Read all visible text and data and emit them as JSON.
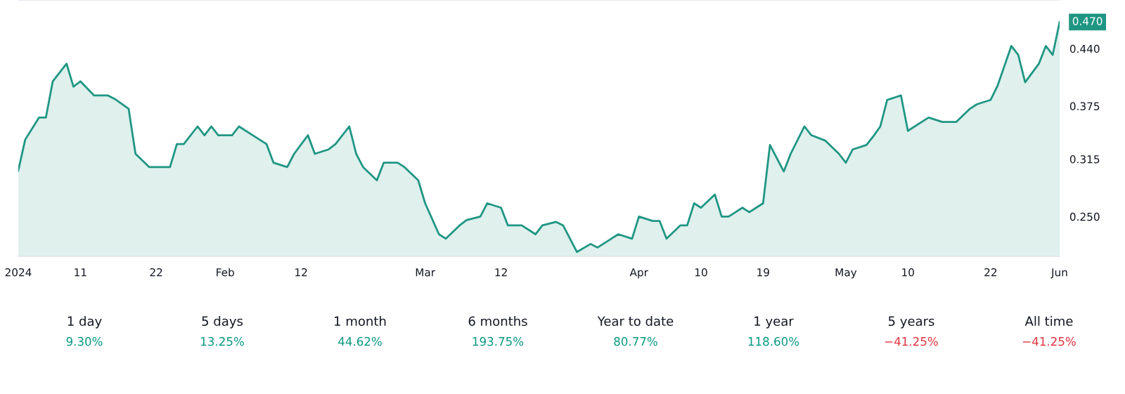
{
  "chart_data": [
    {
      "type": "area",
      "color": "#1f9683",
      "x": [
        "2024-01-02",
        "2024-01-03",
        "2024-01-05",
        "2024-01-06",
        "2024-01-07",
        "2024-01-09",
        "2024-01-10",
        "2024-01-11",
        "2024-01-13",
        "2024-01-15",
        "2024-01-16",
        "2024-01-18",
        "2024-01-19",
        "2024-01-21",
        "2024-01-24",
        "2024-01-25",
        "2024-01-26",
        "2024-01-28",
        "2024-01-29",
        "2024-01-30",
        "2024-01-31",
        "2024-02-02",
        "2024-02-03",
        "2024-02-05",
        "2024-02-07",
        "2024-02-08",
        "2024-02-10",
        "2024-02-11",
        "2024-02-13",
        "2024-02-14",
        "2024-02-16",
        "2024-02-17",
        "2024-02-19",
        "2024-02-20",
        "2024-02-21",
        "2024-02-23",
        "2024-02-24",
        "2024-02-26",
        "2024-02-27",
        "2024-02-29",
        "2024-03-01",
        "2024-03-03",
        "2024-03-04",
        "2024-03-06",
        "2024-03-07",
        "2024-03-09",
        "2024-03-10",
        "2024-03-12",
        "2024-03-13",
        "2024-03-15",
        "2024-03-17",
        "2024-03-18",
        "2024-03-20",
        "2024-03-21",
        "2024-03-23",
        "2024-03-25",
        "2024-03-26",
        "2024-03-28",
        "2024-03-29",
        "2024-03-31",
        "2024-04-01",
        "2024-04-03",
        "2024-04-04",
        "2024-04-05",
        "2024-04-07",
        "2024-04-08",
        "2024-04-09",
        "2024-04-10",
        "2024-04-12",
        "2024-04-13",
        "2024-04-14",
        "2024-04-15",
        "2024-04-16",
        "2024-04-17",
        "2024-04-18",
        "2024-04-19",
        "2024-04-20",
        "2024-04-22",
        "2024-04-23",
        "2024-04-25",
        "2024-04-26",
        "2024-04-28",
        "2024-04-30",
        "2024-05-01",
        "2024-05-02",
        "2024-05-04",
        "2024-05-05",
        "2024-05-06",
        "2024-05-07",
        "2024-05-09",
        "2024-05-10",
        "2024-05-12",
        "2024-05-13",
        "2024-05-15",
        "2024-05-17",
        "2024-05-19",
        "2024-05-20",
        "2024-05-22",
        "2024-05-23",
        "2024-05-25",
        "2024-05-26",
        "2024-05-27",
        "2024-05-29",
        "2024-05-30",
        "2024-05-31",
        "2024-06-01"
      ],
      "values": [
        0.302,
        0.337,
        0.362,
        0.362,
        0.403,
        0.423,
        0.397,
        0.403,
        0.387,
        0.387,
        0.383,
        0.372,
        0.321,
        0.306,
        0.306,
        0.332,
        0.332,
        0.352,
        0.342,
        0.352,
        0.342,
        0.342,
        0.352,
        0.342,
        0.332,
        0.311,
        0.306,
        0.321,
        0.342,
        0.321,
        0.326,
        0.332,
        0.352,
        0.321,
        0.306,
        0.291,
        0.311,
        0.311,
        0.306,
        0.291,
        0.265,
        0.23,
        0.225,
        0.24,
        0.246,
        0.25,
        0.265,
        0.26,
        0.24,
        0.24,
        0.23,
        0.24,
        0.244,
        0.24,
        0.21,
        0.219,
        0.215,
        0.225,
        0.23,
        0.225,
        0.25,
        0.245,
        0.245,
        0.225,
        0.24,
        0.24,
        0.265,
        0.26,
        0.275,
        0.25,
        0.25,
        0.255,
        0.26,
        0.255,
        0.26,
        0.265,
        0.331,
        0.301,
        0.321,
        0.352,
        0.342,
        0.336,
        0.321,
        0.311,
        0.326,
        0.331,
        0.341,
        0.352,
        0.382,
        0.387,
        0.347,
        0.357,
        0.362,
        0.357,
        0.357,
        0.372,
        0.377,
        0.382,
        0.398,
        0.443,
        0.433,
        0.402,
        0.423,
        0.443,
        0.433,
        0.47
      ],
      "xlim": [
        "2024-01-02",
        "2024-06-01"
      ],
      "ylim": [
        0.205,
        0.495
      ],
      "xticks": [
        {
          "value": "2024-01-02",
          "label": "2024"
        },
        {
          "value": "2024-01-11",
          "label": "11"
        },
        {
          "value": "2024-01-22",
          "label": "22"
        },
        {
          "value": "2024-02-01",
          "label": "Feb"
        },
        {
          "value": "2024-02-12",
          "label": "12"
        },
        {
          "value": "2024-03-01",
          "label": "Mar"
        },
        {
          "value": "2024-03-12",
          "label": "12"
        },
        {
          "value": "2024-04-01",
          "label": "Apr"
        },
        {
          "value": "2024-04-10",
          "label": "10"
        },
        {
          "value": "2024-04-19",
          "label": "19"
        },
        {
          "value": "2024-05-01",
          "label": "May"
        },
        {
          "value": "2024-05-10",
          "label": "10"
        },
        {
          "value": "2024-05-22",
          "label": "22"
        },
        {
          "value": "2024-06-01",
          "label": "Jun"
        }
      ],
      "yticks": [
        {
          "value": 0.25,
          "label": "0.250"
        },
        {
          "value": 0.315,
          "label": "0.315"
        },
        {
          "value": 0.375,
          "label": "0.375"
        },
        {
          "value": 0.44,
          "label": "0.440"
        }
      ],
      "annotations": [
        {
          "text": "0.470",
          "x": "2024-06-01",
          "y": 0.47
        }
      ]
    },
    {
      "type": "other",
      "categories": [
        "1 day",
        "5 days",
        "1 month",
        "6 months",
        "Year to date",
        "1 year",
        "5 years",
        "All time"
      ],
      "value_labels": [
        "9.30%",
        "13.25%",
        "44.62%",
        "193.75%",
        "80.77%",
        "118.60%",
        "−41.25%",
        "−41.25%"
      ],
      "colors": [
        "#089981",
        "#089981",
        "#089981",
        "#089981",
        "#089981",
        "#089981",
        "#e0323f",
        "#e0323f"
      ]
    }
  ]
}
